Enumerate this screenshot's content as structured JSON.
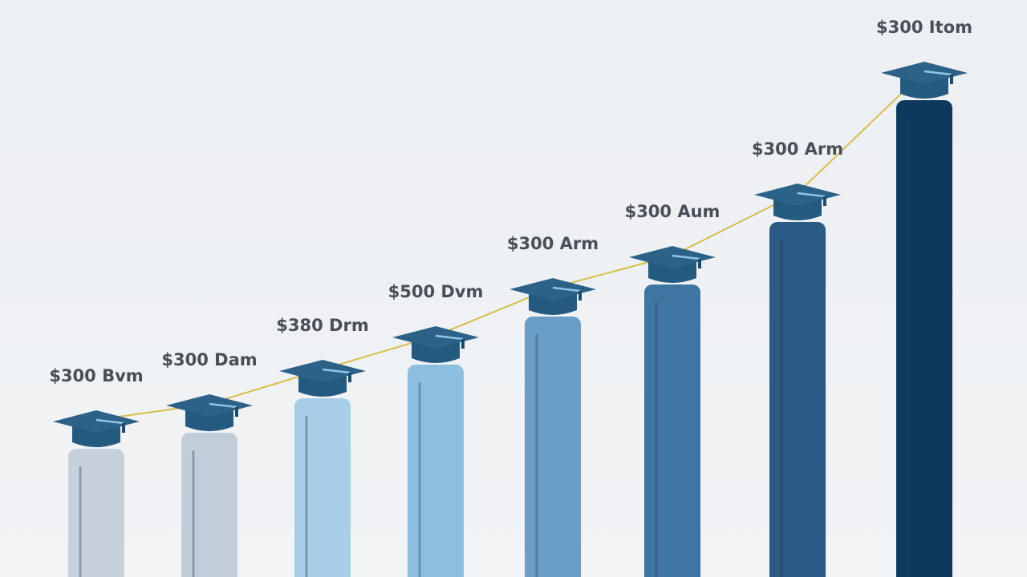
{
  "chart_data": {
    "type": "bar",
    "values": [
      160,
      180,
      223,
      265,
      325,
      365,
      443,
      595
    ],
    "annotations": [
      "$300 Bvm",
      "$300 Dam",
      "$380 Drm",
      "$500 Dvm",
      "$300 Arm",
      "$300 Aum",
      "$300 Arm",
      "$300 Itom"
    ],
    "colors": [
      "#c6d1dc",
      "#c1cdd9",
      "#a7cde7",
      "#8dbfe0",
      "#6a9ec7",
      "#3f75a1",
      "#2a5a86",
      "#0d3a5c"
    ]
  }
}
